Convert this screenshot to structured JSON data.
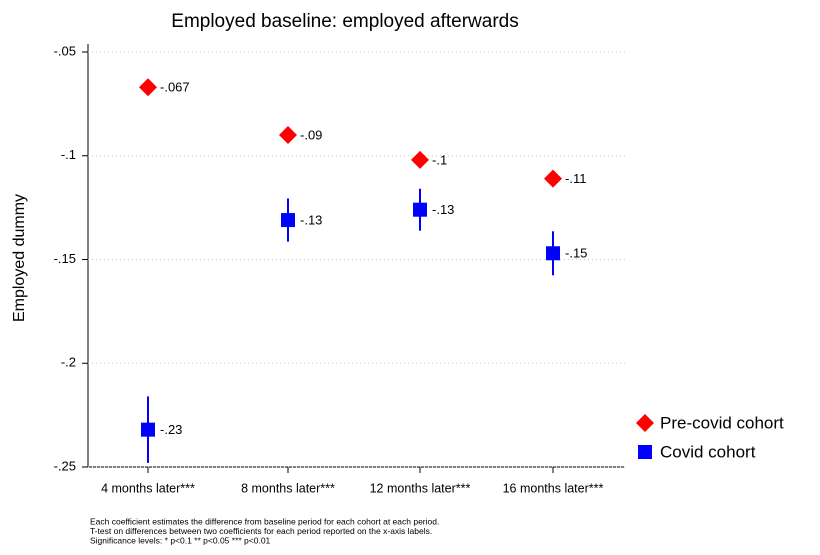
{
  "chart_data": {
    "type": "coefplot",
    "title": "Employed baseline: employed afterwards",
    "y_label": "Employed dummy",
    "categories": [
      "4 months later***",
      "8 months later***",
      "12 months later***",
      "16 months later***"
    ],
    "series": [
      {
        "name": "Pre-covid cohort",
        "color": "#ff0000",
        "marker": "diamond",
        "values": [
          -0.067,
          -0.09,
          -0.102,
          -0.111
        ],
        "value_labels": [
          "-.067",
          "-.09",
          "-.1",
          "-.11"
        ]
      },
      {
        "name": "Covid cohort",
        "color": "#0000ff",
        "marker": "square",
        "values": [
          -0.232,
          -0.131,
          -0.126,
          -0.147
        ],
        "errors": [
          0.016,
          0.0104,
          0.0101,
          0.0106
        ],
        "value_labels": [
          "-.23",
          "-.13",
          "-.13",
          "-.15"
        ]
      }
    ],
    "ylim": [
      -0.25,
      -0.05
    ],
    "yticks": [
      {
        "value": -0.05,
        "label": "-.05"
      },
      {
        "value": -0.1,
        "label": "-.1"
      },
      {
        "value": -0.15,
        "label": "-.15"
      },
      {
        "value": -0.2,
        "label": "-.2"
      },
      {
        "value": -0.25,
        "label": "-.25"
      }
    ],
    "grid": true,
    "notes": [
      "Each coefficient estimates the difference from baseline period for each cohort at each period.",
      "T-test on differences between two coefficients for each period reported on the x-axis labels.",
      "Significance levels: * p<0.1 ** p<0.05 *** p<0.01"
    ]
  }
}
